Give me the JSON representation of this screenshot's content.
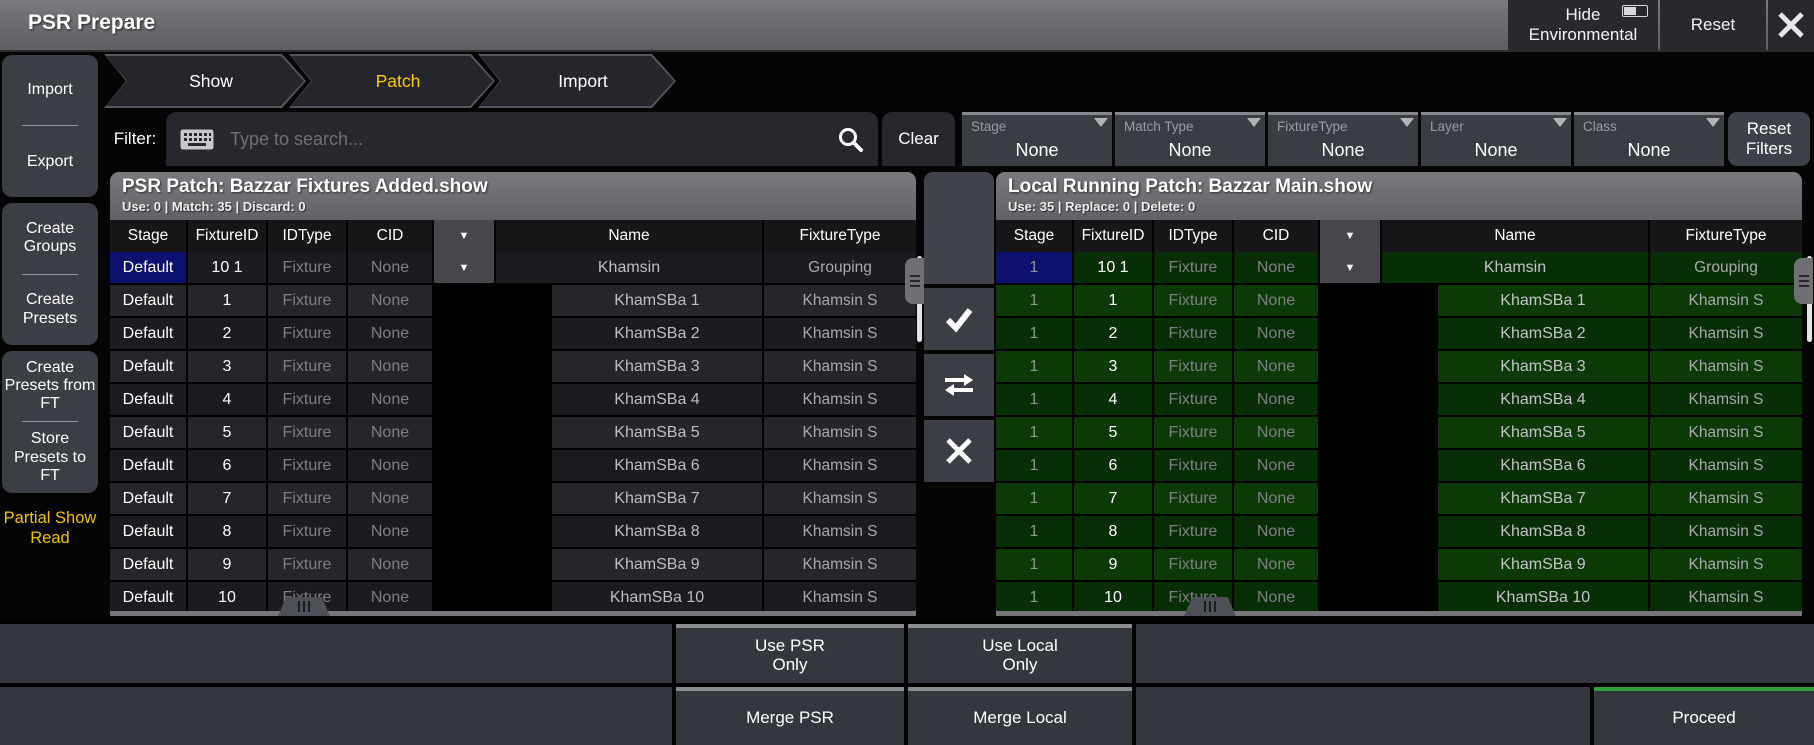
{
  "window": {
    "title": "PSR Prepare"
  },
  "titlebar_actions": {
    "hide_environmental": "Hide\nEnvironmental",
    "reset": "Reset"
  },
  "sidebar": {
    "panels": [
      {
        "buttons": [
          "Import",
          "Export"
        ]
      },
      {
        "buttons": [
          "Create Groups",
          "Create Presets"
        ]
      },
      {
        "buttons": [
          "Create Presets from FT",
          "Store Presets to FT"
        ]
      }
    ],
    "footer_label": "Partial Show Read",
    "footer_color": "#f2c200"
  },
  "breadcrumb": {
    "tabs": [
      {
        "label": "Show",
        "active": false
      },
      {
        "label": "Patch",
        "active": true
      },
      {
        "label": "Import",
        "active": false
      }
    ],
    "active_color": "#ffc800"
  },
  "filter": {
    "label": "Filter:",
    "search_placeholder": "Type to search...",
    "clear_label": "Clear",
    "dropdowns": [
      {
        "label": "Stage",
        "value": "None"
      },
      {
        "label": "Match Type",
        "value": "None"
      },
      {
        "label": "FixtureType",
        "value": "None"
      },
      {
        "label": "Layer",
        "value": "None"
      },
      {
        "label": "Class",
        "value": "None"
      }
    ],
    "reset_label": "Reset Filters"
  },
  "tables": {
    "columns": [
      "Stage",
      "FixtureID",
      "IDType",
      "CID",
      "▼",
      "Name",
      "FixtureType"
    ],
    "psr": {
      "title": "PSR Patch: Bazzar Fixtures Added.show",
      "stats": "Use: 0 | Match: 35 | Discard: 0",
      "rows": [
        {
          "stage": "Default",
          "fixture_id": "10 1",
          "id_type": "Fixture",
          "cid": "None",
          "name": "Khamsin",
          "fixture_type": "Grouping",
          "group": true
        },
        {
          "stage": "Default",
          "fixture_id": "1",
          "id_type": "Fixture",
          "cid": "None",
          "name": "KhamSBa 1",
          "fixture_type": "Khamsin S"
        },
        {
          "stage": "Default",
          "fixture_id": "2",
          "id_type": "Fixture",
          "cid": "None",
          "name": "KhamSBa 2",
          "fixture_type": "Khamsin S"
        },
        {
          "stage": "Default",
          "fixture_id": "3",
          "id_type": "Fixture",
          "cid": "None",
          "name": "KhamSBa 3",
          "fixture_type": "Khamsin S"
        },
        {
          "stage": "Default",
          "fixture_id": "4",
          "id_type": "Fixture",
          "cid": "None",
          "name": "KhamSBa 4",
          "fixture_type": "Khamsin S"
        },
        {
          "stage": "Default",
          "fixture_id": "5",
          "id_type": "Fixture",
          "cid": "None",
          "name": "KhamSBa 5",
          "fixture_type": "Khamsin S"
        },
        {
          "stage": "Default",
          "fixture_id": "6",
          "id_type": "Fixture",
          "cid": "None",
          "name": "KhamSBa 6",
          "fixture_type": "Khamsin S"
        },
        {
          "stage": "Default",
          "fixture_id": "7",
          "id_type": "Fixture",
          "cid": "None",
          "name": "KhamSBa 7",
          "fixture_type": "Khamsin S"
        },
        {
          "stage": "Default",
          "fixture_id": "8",
          "id_type": "Fixture",
          "cid": "None",
          "name": "KhamSBa 8",
          "fixture_type": "Khamsin S"
        },
        {
          "stage": "Default",
          "fixture_id": "9",
          "id_type": "Fixture",
          "cid": "None",
          "name": "KhamSBa 9",
          "fixture_type": "Khamsin S"
        },
        {
          "stage": "Default",
          "fixture_id": "10",
          "id_type": "Fixture",
          "cid": "None",
          "name": "KhamSBa 10",
          "fixture_type": "Khamsin S"
        }
      ]
    },
    "local": {
      "title": "Local Running Patch: Bazzar Main.show",
      "stats": "Use: 35 | Replace: 0 | Delete: 0",
      "rows": [
        {
          "stage": "1",
          "fixture_id": "10 1",
          "id_type": "Fixture",
          "cid": "None",
          "name": "Khamsin",
          "fixture_type": "Grouping",
          "group": true
        },
        {
          "stage": "1",
          "fixture_id": "1",
          "id_type": "Fixture",
          "cid": "None",
          "name": "KhamSBa 1",
          "fixture_type": "Khamsin S"
        },
        {
          "stage": "1",
          "fixture_id": "2",
          "id_type": "Fixture",
          "cid": "None",
          "name": "KhamSBa 2",
          "fixture_type": "Khamsin S"
        },
        {
          "stage": "1",
          "fixture_id": "3",
          "id_type": "Fixture",
          "cid": "None",
          "name": "KhamSBa 3",
          "fixture_type": "Khamsin S"
        },
        {
          "stage": "1",
          "fixture_id": "4",
          "id_type": "Fixture",
          "cid": "None",
          "name": "KhamSBa 4",
          "fixture_type": "Khamsin S"
        },
        {
          "stage": "1",
          "fixture_id": "5",
          "id_type": "Fixture",
          "cid": "None",
          "name": "KhamSBa 5",
          "fixture_type": "Khamsin S"
        },
        {
          "stage": "1",
          "fixture_id": "6",
          "id_type": "Fixture",
          "cid": "None",
          "name": "KhamSBa 6",
          "fixture_type": "Khamsin S"
        },
        {
          "stage": "1",
          "fixture_id": "7",
          "id_type": "Fixture",
          "cid": "None",
          "name": "KhamSBa 7",
          "fixture_type": "Khamsin S"
        },
        {
          "stage": "1",
          "fixture_id": "8",
          "id_type": "Fixture",
          "cid": "None",
          "name": "KhamSBa 8",
          "fixture_type": "Khamsin S"
        },
        {
          "stage": "1",
          "fixture_id": "9",
          "id_type": "Fixture",
          "cid": "None",
          "name": "KhamSBa 9",
          "fixture_type": "Khamsin S"
        },
        {
          "stage": "1",
          "fixture_id": "10",
          "id_type": "Fixture",
          "cid": "None",
          "name": "KhamSBa 10",
          "fixture_type": "Khamsin S"
        }
      ]
    }
  },
  "middle_actions": [
    {
      "icon": "check-icon"
    },
    {
      "icon": "swap-icon"
    },
    {
      "icon": "reject-icon"
    }
  ],
  "footer": {
    "use_psr": "Use PSR\nOnly",
    "use_local": "Use Local\nOnly",
    "merge_psr": "Merge PSR",
    "merge_local": "Merge Local",
    "proceed": "Proceed"
  },
  "colors": {
    "active_tab": "#ffc800",
    "partial_show_read": "#f2c200",
    "proceed_accent": "#2f9e3d",
    "selected_cell": "#0c1170",
    "local_row_green": "#0a3305",
    "titlebar_gray": "#6b6b70"
  }
}
